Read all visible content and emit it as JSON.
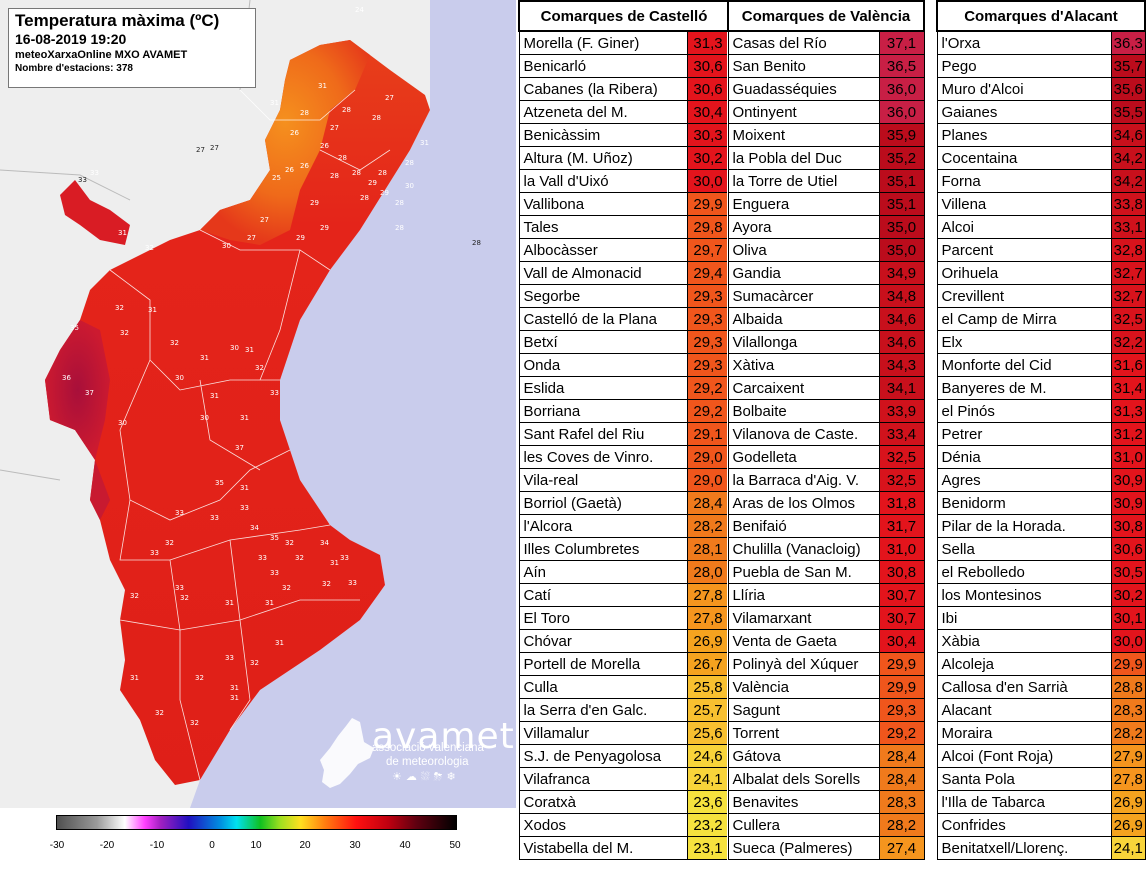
{
  "title": {
    "main": "Temperatura màxima (ºC)",
    "datetime": "16-08-2019 19:20",
    "network": "meteoXarxaOnline MXO AVAMET",
    "stations": "Nombre d'estacions: 378"
  },
  "brand": {
    "name": "avamet",
    "sub1": "associació valenciana",
    "sub2": "de meteorologia",
    "icons": "☀☁⛆⛈❄"
  },
  "scale": {
    "ticks": [
      "-30",
      "-20",
      "-10",
      "0",
      "10",
      "20",
      "30",
      "40",
      "50"
    ]
  },
  "colors": {
    "sea": "#c9ccec",
    "land_out": "#eeeeee",
    "region_hot": "#e0201a",
    "region_warm": "#f06a18",
    "region_cool": "#f7a024",
    "region_veryhot": "#b8123c"
  },
  "tables": [
    {
      "header": "Comarques de Castelló",
      "rows": [
        {
          "name": "Morella (F. Giner)",
          "value": "31,3",
          "color": "#e3141c"
        },
        {
          "name": "Benicarló",
          "value": "30,6",
          "color": "#e3141c"
        },
        {
          "name": "Cabanes (la Ribera)",
          "value": "30,6",
          "color": "#e3141c"
        },
        {
          "name": "Atzeneta del M.",
          "value": "30,4",
          "color": "#e3141c"
        },
        {
          "name": "Benicàssim",
          "value": "30,3",
          "color": "#e3141c"
        },
        {
          "name": "Altura (M. Uñoz)",
          "value": "30,2",
          "color": "#e3141c"
        },
        {
          "name": "la Vall d'Uixó",
          "value": "30,0",
          "color": "#e3141c"
        },
        {
          "name": "Vallibona",
          "value": "29,9",
          "color": "#f0561c"
        },
        {
          "name": "Tales",
          "value": "29,8",
          "color": "#f0561c"
        },
        {
          "name": "Albocàsser",
          "value": "29,7",
          "color": "#f0561c"
        },
        {
          "name": "Vall de Almonacid",
          "value": "29,4",
          "color": "#f0561c"
        },
        {
          "name": "Segorbe",
          "value": "29,3",
          "color": "#f0561c"
        },
        {
          "name": "Castelló de la Plana",
          "value": "29,3",
          "color": "#f0561c"
        },
        {
          "name": "Betxí",
          "value": "29,3",
          "color": "#f0561c"
        },
        {
          "name": "Onda",
          "value": "29,3",
          "color": "#f0561c"
        },
        {
          "name": "Eslida",
          "value": "29,2",
          "color": "#f0561c"
        },
        {
          "name": "Borriana",
          "value": "29,2",
          "color": "#f0561c"
        },
        {
          "name": "Sant Rafel del Riu",
          "value": "29,1",
          "color": "#f0561c"
        },
        {
          "name": "les Coves de Vinro.",
          "value": "29,0",
          "color": "#f0561c"
        },
        {
          "name": "Vila-real",
          "value": "29,0",
          "color": "#f0561c"
        },
        {
          "name": "Borriol (Gaetà)",
          "value": "28,4",
          "color": "#f07a1c"
        },
        {
          "name": "l'Alcora",
          "value": "28,2",
          "color": "#f07a1c"
        },
        {
          "name": "Illes Columbretes",
          "value": "28,1",
          "color": "#f07a1c"
        },
        {
          "name": "Aín",
          "value": "28,0",
          "color": "#f07a1c"
        },
        {
          "name": "Catí",
          "value": "27,8",
          "color": "#f5951e"
        },
        {
          "name": "El Toro",
          "value": "27,8",
          "color": "#f5951e"
        },
        {
          "name": "Chóvar",
          "value": "26,9",
          "color": "#f5a31f"
        },
        {
          "name": "Portell de Morella",
          "value": "26,7",
          "color": "#f5a31f"
        },
        {
          "name": "Culla",
          "value": "25,8",
          "color": "#f8c030"
        },
        {
          "name": "la Serra d'en Galc.",
          "value": "25,7",
          "color": "#f8c030"
        },
        {
          "name": "Villamalur",
          "value": "25,6",
          "color": "#f8c030"
        },
        {
          "name": "S.J. de Penyagolosa",
          "value": "24,6",
          "color": "#f8d43a"
        },
        {
          "name": "Vilafranca",
          "value": "24,1",
          "color": "#f8d43a"
        },
        {
          "name": "Coratxà",
          "value": "23,6",
          "color": "#f6e23e"
        },
        {
          "name": "Xodos",
          "value": "23,2",
          "color": "#f6e23e"
        },
        {
          "name": "Vistabella del M.",
          "value": "23,1",
          "color": "#f6e23e"
        }
      ]
    },
    {
      "header": "Comarques de València",
      "rows": [
        {
          "name": "Casas del Río",
          "value": "37,1",
          "color": "#c81f45"
        },
        {
          "name": "San Benito",
          "value": "36,5",
          "color": "#c81f45"
        },
        {
          "name": "Guadasséquies",
          "value": "36,0",
          "color": "#c81f45"
        },
        {
          "name": "Ontinyent",
          "value": "36,0",
          "color": "#c81f45"
        },
        {
          "name": "Moixent",
          "value": "35,9",
          "color": "#bb0c1c"
        },
        {
          "name": "la Pobla del Duc",
          "value": "35,2",
          "color": "#bb0c1c"
        },
        {
          "name": "la Torre de Utiel",
          "value": "35,1",
          "color": "#bb0c1c"
        },
        {
          "name": "Enguera",
          "value": "35,1",
          "color": "#bb0c1c"
        },
        {
          "name": "Ayora",
          "value": "35,0",
          "color": "#bb0c1c"
        },
        {
          "name": "Oliva",
          "value": "35,0",
          "color": "#bb0c1c"
        },
        {
          "name": "Gandia",
          "value": "34,9",
          "color": "#c8101c"
        },
        {
          "name": "Sumacàrcer",
          "value": "34,8",
          "color": "#c8101c"
        },
        {
          "name": "Albaida",
          "value": "34,6",
          "color": "#c8101c"
        },
        {
          "name": "Vilallonga",
          "value": "34,6",
          "color": "#c8101c"
        },
        {
          "name": "Xàtiva",
          "value": "34,3",
          "color": "#c8101c"
        },
        {
          "name": "Carcaixent",
          "value": "34,1",
          "color": "#c8101c"
        },
        {
          "name": "Bolbaite",
          "value": "33,9",
          "color": "#d0121c"
        },
        {
          "name": "Vilanova de Caste.",
          "value": "33,4",
          "color": "#d0121c"
        },
        {
          "name": "Godelleta",
          "value": "32,5",
          "color": "#d8131c"
        },
        {
          "name": "la Barraca d'Aig. V.",
          "value": "32,5",
          "color": "#d8131c"
        },
        {
          "name": "Aras de los Olmos",
          "value": "31,8",
          "color": "#e3141c"
        },
        {
          "name": "Benifaió",
          "value": "31,7",
          "color": "#e3141c"
        },
        {
          "name": "Chulilla (Vanacloig)",
          "value": "31,0",
          "color": "#e3141c"
        },
        {
          "name": "Puebla de San M.",
          "value": "30,8",
          "color": "#e3141c"
        },
        {
          "name": "Llíria",
          "value": "30,7",
          "color": "#e3141c"
        },
        {
          "name": "Vilamarxant",
          "value": "30,7",
          "color": "#e3141c"
        },
        {
          "name": "Venta de Gaeta",
          "value": "30,4",
          "color": "#e3141c"
        },
        {
          "name": "Polinyà del Xúquer",
          "value": "29,9",
          "color": "#f0561c"
        },
        {
          "name": "València",
          "value": "29,9",
          "color": "#f0561c"
        },
        {
          "name": "Sagunt",
          "value": "29,3",
          "color": "#f0561c"
        },
        {
          "name": "Torrent",
          "value": "29,2",
          "color": "#f0561c"
        },
        {
          "name": "Gátova",
          "value": "28,4",
          "color": "#f07a1c"
        },
        {
          "name": "Albalat dels Sorells",
          "value": "28,4",
          "color": "#f07a1c"
        },
        {
          "name": "Benavites",
          "value": "28,3",
          "color": "#f07a1c"
        },
        {
          "name": "Cullera",
          "value": "28,2",
          "color": "#f07a1c"
        },
        {
          "name": "Sueca (Palmeres)",
          "value": "27,4",
          "color": "#f5951e"
        }
      ]
    },
    {
      "header": "Comarques d'Alacant",
      "rows": [
        {
          "name": "l'Orxa",
          "value": "36,3",
          "color": "#c81f45"
        },
        {
          "name": "Pego",
          "value": "35,7",
          "color": "#bb0c1c"
        },
        {
          "name": "Muro d'Alcoi",
          "value": "35,6",
          "color": "#bb0c1c"
        },
        {
          "name": "Gaianes",
          "value": "35,5",
          "color": "#bb0c1c"
        },
        {
          "name": "Planes",
          "value": "34,6",
          "color": "#c8101c"
        },
        {
          "name": "Cocentaina",
          "value": "34,2",
          "color": "#c8101c"
        },
        {
          "name": "Forna",
          "value": "34,2",
          "color": "#c8101c"
        },
        {
          "name": "Villena",
          "value": "33,8",
          "color": "#d0121c"
        },
        {
          "name": "Alcoi",
          "value": "33,1",
          "color": "#d0121c"
        },
        {
          "name": "Parcent",
          "value": "32,8",
          "color": "#d8131c"
        },
        {
          "name": "Orihuela",
          "value": "32,7",
          "color": "#d8131c"
        },
        {
          "name": "Crevillent",
          "value": "32,7",
          "color": "#d8131c"
        },
        {
          "name": "el Camp de Mirra",
          "value": "32,5",
          "color": "#d8131c"
        },
        {
          "name": "Elx",
          "value": "32,2",
          "color": "#d8131c"
        },
        {
          "name": "Monforte del Cid",
          "value": "31,6",
          "color": "#e3141c"
        },
        {
          "name": "Banyeres de M.",
          "value": "31,4",
          "color": "#e3141c"
        },
        {
          "name": "el Pinós",
          "value": "31,3",
          "color": "#e3141c"
        },
        {
          "name": "Petrer",
          "value": "31,2",
          "color": "#e3141c"
        },
        {
          "name": "Dénia",
          "value": "31,0",
          "color": "#e3141c"
        },
        {
          "name": "Agres",
          "value": "30,9",
          "color": "#e3141c"
        },
        {
          "name": "Benidorm",
          "value": "30,9",
          "color": "#e3141c"
        },
        {
          "name": "Pilar de la Horada.",
          "value": "30,8",
          "color": "#e3141c"
        },
        {
          "name": "Sella",
          "value": "30,6",
          "color": "#e3141c"
        },
        {
          "name": "el Rebolledo",
          "value": "30,5",
          "color": "#e3141c"
        },
        {
          "name": "los Montesinos",
          "value": "30,2",
          "color": "#e3141c"
        },
        {
          "name": "Ibi",
          "value": "30,1",
          "color": "#e3141c"
        },
        {
          "name": "Xàbia",
          "value": "30,0",
          "color": "#e3141c"
        },
        {
          "name": "Alcoleja",
          "value": "29,9",
          "color": "#f0561c"
        },
        {
          "name": "Callosa d'en Sarrià",
          "value": "28,8",
          "color": "#f07a1c"
        },
        {
          "name": "Alacant",
          "value": "28,3",
          "color": "#f07a1c"
        },
        {
          "name": "Moraira",
          "value": "28,2",
          "color": "#f07a1c"
        },
        {
          "name": "Alcoi (Font Roja)",
          "value": "27,9",
          "color": "#f5951e"
        },
        {
          "name": "Santa Pola",
          "value": "27,8",
          "color": "#f5951e"
        },
        {
          "name": "l'Illa de Tabarca",
          "value": "26,9",
          "color": "#f5a31f"
        },
        {
          "name": "Confrides",
          "value": "26,9",
          "color": "#f5a31f"
        },
        {
          "name": "Benitatxell/Llorenç.",
          "value": "24,1",
          "color": "#f8d43a"
        }
      ]
    }
  ],
  "map_labels": [
    "31",
    "28",
    "27",
    "24",
    "31",
    "28",
    "27",
    "28",
    "26",
    "26",
    "28",
    "28",
    "25",
    "26",
    "26",
    "28",
    "29",
    "29",
    "29",
    "27",
    "27",
    "30",
    "33",
    "31",
    "32",
    "32",
    "32",
    "31",
    "35",
    "30",
    "31",
    "32",
    "33",
    "36",
    "37",
    "32",
    "31",
    "30",
    "30",
    "31",
    "30",
    "31",
    "37",
    "31",
    "35",
    "33",
    "33",
    "33",
    "34",
    "35",
    "33",
    "32",
    "32",
    "34",
    "33",
    "31",
    "33",
    "32",
    "31",
    "31",
    "31",
    "33",
    "32",
    "32",
    "31",
    "32",
    "32",
    "33",
    "32",
    "33",
    "31",
    "32",
    "31",
    "31",
    "28",
    "28",
    "30",
    "28",
    "29",
    "28",
    "29",
    "28",
    "33",
    "32",
    "32"
  ]
}
